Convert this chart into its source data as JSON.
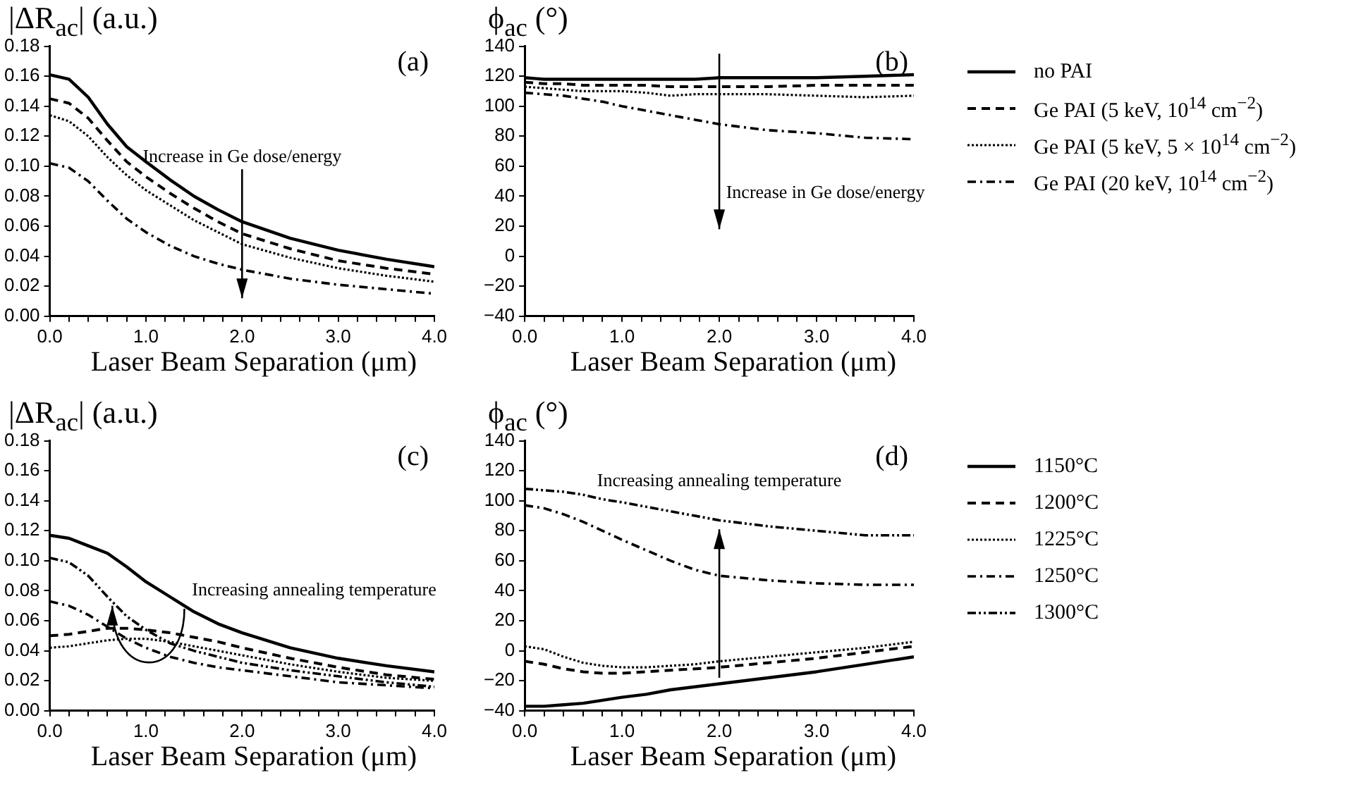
{
  "chart_data": [
    {
      "type": "line",
      "title": "(a)",
      "xlabel": "Laser Beam Separation (μm)",
      "ylabel": "|ΔR$_{ac}$| (a.u.)",
      "x": [
        0,
        0.2,
        0.4,
        0.6,
        0.8,
        1.0,
        1.25,
        1.5,
        1.75,
        2.0,
        2.5,
        3.0,
        3.5,
        4.0
      ],
      "xlim": [
        0,
        4
      ],
      "xticks": [
        {
          "value": 0,
          "label": "0.0"
        },
        {
          "value": 0.2,
          "label": null
        },
        {
          "value": 0.4,
          "label": null
        },
        {
          "value": 0.6,
          "label": null
        },
        {
          "value": 0.8,
          "label": null
        },
        {
          "value": 1,
          "label": "1.0"
        },
        {
          "value": 1.2,
          "label": null
        },
        {
          "value": 1.4,
          "label": null
        },
        {
          "value": 1.6,
          "label": null
        },
        {
          "value": 1.8,
          "label": null
        },
        {
          "value": 2,
          "label": "2.0"
        },
        {
          "value": 2.2,
          "label": null
        },
        {
          "value": 2.4,
          "label": null
        },
        {
          "value": 2.6,
          "label": null
        },
        {
          "value": 2.8,
          "label": null
        },
        {
          "value": 3,
          "label": "3.0"
        },
        {
          "value": 3.2,
          "label": null
        },
        {
          "value": 3.4,
          "label": null
        },
        {
          "value": 3.6,
          "label": null
        },
        {
          "value": 3.8,
          "label": null
        },
        {
          "value": 4,
          "label": "4.0"
        }
      ],
      "ylim": [
        0,
        0.18
      ],
      "yticks": [
        {
          "value": 0,
          "label": "0.00"
        },
        {
          "value": 0.02,
          "label": "0.02"
        },
        {
          "value": 0.04,
          "label": "0.04"
        },
        {
          "value": 0.06,
          "label": "0.06"
        },
        {
          "value": 0.08,
          "label": "0.08"
        },
        {
          "value": 0.1,
          "label": "0.10"
        },
        {
          "value": 0.12,
          "label": "0.12"
        },
        {
          "value": 0.14,
          "label": "0.14"
        },
        {
          "value": 0.16,
          "label": "0.16"
        },
        {
          "value": 0.18,
          "label": "0.18"
        }
      ],
      "grid": false,
      "legend": false,
      "marker": "none",
      "annotations": [
        "Increase in Ge dose/energy"
      ],
      "series": [
        {
          "color": "#000000",
          "line_style": "solid",
          "values": [
            0.161,
            0.158,
            0.146,
            0.128,
            0.113,
            0.103,
            0.091,
            0.08,
            0.071,
            0.063,
            0.052,
            0.044,
            0.038,
            0.033
          ]
        },
        {
          "color": "#000000",
          "line_style": "dashed",
          "values": [
            0.145,
            0.142,
            0.132,
            0.117,
            0.103,
            0.093,
            0.082,
            0.072,
            0.063,
            0.055,
            0.045,
            0.037,
            0.032,
            0.028
          ]
        },
        {
          "color": "#000000",
          "line_style": "dotted",
          "values": [
            0.134,
            0.13,
            0.12,
            0.106,
            0.094,
            0.084,
            0.074,
            0.064,
            0.056,
            0.048,
            0.039,
            0.032,
            0.027,
            0.023
          ]
        },
        {
          "color": "#000000",
          "line_style": "dashdot",
          "values": [
            0.102,
            0.099,
            0.09,
            0.077,
            0.065,
            0.056,
            0.047,
            0.04,
            0.035,
            0.031,
            0.025,
            0.021,
            0.018,
            0.015
          ]
        }
      ]
    },
    {
      "type": "line",
      "title": "(b)",
      "xlabel": "Laser Beam Separation (μm)",
      "ylabel": "ϕ$_{ac}$ (°)",
      "x": [
        0,
        0.2,
        0.4,
        0.6,
        0.8,
        1.0,
        1.25,
        1.5,
        1.75,
        2.0,
        2.5,
        3.0,
        3.5,
        4.0
      ],
      "xlim": [
        0,
        4
      ],
      "xticks": [
        {
          "value": 0,
          "label": "0.0"
        },
        {
          "value": 0.2,
          "label": null
        },
        {
          "value": 0.4,
          "label": null
        },
        {
          "value": 0.6,
          "label": null
        },
        {
          "value": 0.8,
          "label": null
        },
        {
          "value": 1,
          "label": "1.0"
        },
        {
          "value": 1.2,
          "label": null
        },
        {
          "value": 1.4,
          "label": null
        },
        {
          "value": 1.6,
          "label": null
        },
        {
          "value": 1.8,
          "label": null
        },
        {
          "value": 2,
          "label": "2.0"
        },
        {
          "value": 2.2,
          "label": null
        },
        {
          "value": 2.4,
          "label": null
        },
        {
          "value": 2.6,
          "label": null
        },
        {
          "value": 2.8,
          "label": null
        },
        {
          "value": 3,
          "label": "3.0"
        },
        {
          "value": 3.2,
          "label": null
        },
        {
          "value": 3.4,
          "label": null
        },
        {
          "value": 3.6,
          "label": null
        },
        {
          "value": 3.8,
          "label": null
        },
        {
          "value": 4,
          "label": "4.0"
        }
      ],
      "ylim": [
        -40,
        140
      ],
      "yticks": [
        {
          "value": -40,
          "label": "−40"
        },
        {
          "value": -20,
          "label": "−20"
        },
        0,
        20,
        40,
        60,
        80,
        100,
        120,
        140
      ],
      "grid": false,
      "legend": "right",
      "marker": "none",
      "annotations": [
        "Increase in Ge dose/energy"
      ],
      "series": [
        {
          "name": "no PAI",
          "color": "#000000",
          "line_style": "solid",
          "values": [
            119,
            118,
            118,
            118,
            118,
            118,
            118,
            118,
            118,
            119,
            119,
            119,
            120,
            121
          ]
        },
        {
          "name": "Ge PAI (5 keV, 10$^{14}$ cm$^{−2}$)",
          "color": "#000000",
          "line_style": "dashed",
          "values": [
            116,
            115,
            115,
            114,
            114,
            114,
            114,
            113,
            113,
            113,
            113,
            114,
            114,
            114
          ]
        },
        {
          "name": "Ge PAI (5 keV, 5 × 10$^{14}$ cm$^{−2}$)",
          "color": "#000000",
          "line_style": "dotted",
          "values": [
            113,
            112,
            111,
            110,
            110,
            110,
            109,
            107,
            108,
            108,
            108,
            107,
            106,
            107
          ]
        },
        {
          "name": "Ge PAI (20 keV, 10$^{14}$ cm$^{−2}$)",
          "color": "#000000",
          "line_style": "dashdot",
          "values": [
            109,
            108,
            107,
            105,
            103,
            100,
            97,
            94,
            91,
            88,
            84,
            82,
            79,
            78
          ]
        }
      ]
    },
    {
      "type": "line",
      "title": "(c)",
      "xlabel": "Laser Beam Separation (μm)",
      "ylabel": "|ΔR$_{ac}$| (a.u.)",
      "x": [
        0,
        0.2,
        0.4,
        0.6,
        0.8,
        1.0,
        1.25,
        1.5,
        1.75,
        2.0,
        2.5,
        3.0,
        3.5,
        4.0
      ],
      "xlim": [
        0,
        4
      ],
      "xticks": [
        {
          "value": 0,
          "label": "0.0"
        },
        {
          "value": 0.2,
          "label": null
        },
        {
          "value": 0.4,
          "label": null
        },
        {
          "value": 0.6,
          "label": null
        },
        {
          "value": 0.8,
          "label": null
        },
        {
          "value": 1,
          "label": "1.0"
        },
        {
          "value": 1.2,
          "label": null
        },
        {
          "value": 1.4,
          "label": null
        },
        {
          "value": 1.6,
          "label": null
        },
        {
          "value": 1.8,
          "label": null
        },
        {
          "value": 2,
          "label": "2.0"
        },
        {
          "value": 2.2,
          "label": null
        },
        {
          "value": 2.4,
          "label": null
        },
        {
          "value": 2.6,
          "label": null
        },
        {
          "value": 2.8,
          "label": null
        },
        {
          "value": 3,
          "label": "3.0"
        },
        {
          "value": 3.2,
          "label": null
        },
        {
          "value": 3.4,
          "label": null
        },
        {
          "value": 3.6,
          "label": null
        },
        {
          "value": 3.8,
          "label": null
        },
        {
          "value": 4,
          "label": "4.0"
        }
      ],
      "ylim": [
        0,
        0.18
      ],
      "yticks": [
        {
          "value": 0,
          "label": "0.00"
        },
        {
          "value": 0.02,
          "label": "0.02"
        },
        {
          "value": 0.04,
          "label": "0.04"
        },
        {
          "value": 0.06,
          "label": "0.06"
        },
        {
          "value": 0.08,
          "label": "0.08"
        },
        {
          "value": 0.1,
          "label": "0.10"
        },
        {
          "value": 0.12,
          "label": "0.12"
        },
        {
          "value": 0.14,
          "label": "0.14"
        },
        {
          "value": 0.16,
          "label": "0.16"
        },
        {
          "value": 0.18,
          "label": "0.18"
        }
      ],
      "grid": false,
      "legend": false,
      "marker": "none",
      "annotations": [
        {
          "text": "Increasing annealing temperature",
          "x": 0.65,
          "y": 0.07
        }
      ],
      "series": [
        {
          "color": "#000000",
          "line_style": "solid",
          "values": [
            0.117,
            0.115,
            0.11,
            0.105,
            0.096,
            0.086,
            0.076,
            0.066,
            0.058,
            0.052,
            0.042,
            0.035,
            0.03,
            0.026
          ]
        },
        {
          "color": "#000000",
          "line_style": "dashed",
          "values": [
            0.05,
            0.051,
            0.053,
            0.055,
            0.055,
            0.054,
            0.052,
            0.049,
            0.046,
            0.042,
            0.035,
            0.029,
            0.024,
            0.021
          ]
        },
        {
          "color": "#000000",
          "line_style": "dotted",
          "values": [
            0.042,
            0.043,
            0.045,
            0.047,
            0.048,
            0.048,
            0.046,
            0.043,
            0.04,
            0.037,
            0.031,
            0.026,
            0.022,
            0.02
          ]
        },
        {
          "color": "#000000",
          "line_style": "dashdot",
          "values": [
            0.073,
            0.07,
            0.064,
            0.056,
            0.048,
            0.042,
            0.036,
            0.032,
            0.029,
            0.027,
            0.023,
            0.019,
            0.017,
            0.015
          ]
        },
        {
          "color": "#000000",
          "line_style": "dashdotdot",
          "values": [
            0.102,
            0.099,
            0.09,
            0.076,
            0.063,
            0.054,
            0.045,
            0.04,
            0.036,
            0.032,
            0.027,
            0.023,
            0.019,
            0.016
          ]
        }
      ]
    },
    {
      "type": "line",
      "title": "(d)",
      "xlabel": "Laser Beam Separation (μm)",
      "ylabel": "ϕ$_{ac}$ (°)",
      "x": [
        0,
        0.2,
        0.4,
        0.6,
        0.8,
        1.0,
        1.25,
        1.5,
        1.75,
        2.0,
        2.5,
        3.0,
        3.5,
        4.0
      ],
      "xlim": [
        0,
        4
      ],
      "xticks": [
        {
          "value": 0,
          "label": "0.0"
        },
        {
          "value": 0.2,
          "label": null
        },
        {
          "value": 0.4,
          "label": null
        },
        {
          "value": 0.6,
          "label": null
        },
        {
          "value": 0.8,
          "label": null
        },
        {
          "value": 1,
          "label": "1.0"
        },
        {
          "value": 1.2,
          "label": null
        },
        {
          "value": 1.4,
          "label": null
        },
        {
          "value": 1.6,
          "label": null
        },
        {
          "value": 1.8,
          "label": null
        },
        {
          "value": 2,
          "label": "2.0"
        },
        {
          "value": 2.2,
          "label": null
        },
        {
          "value": 2.4,
          "label": null
        },
        {
          "value": 2.6,
          "label": null
        },
        {
          "value": 2.8,
          "label": null
        },
        {
          "value": 3,
          "label": "3.0"
        },
        {
          "value": 3.2,
          "label": null
        },
        {
          "value": 3.4,
          "label": null
        },
        {
          "value": 3.6,
          "label": null
        },
        {
          "value": 3.8,
          "label": null
        },
        {
          "value": 4,
          "label": "4.0"
        }
      ],
      "ylim": [
        -40,
        140
      ],
      "yticks": [
        {
          "value": -40,
          "label": "−40"
        },
        {
          "value": -20,
          "label": "−20"
        },
        0,
        20,
        40,
        60,
        80,
        100,
        120,
        140
      ],
      "grid": false,
      "legend": "right",
      "marker": "none",
      "annotations": [
        "Increasing annealing temperature"
      ],
      "series": [
        {
          "name": "1150°C",
          "color": "#000000",
          "line_style": "solid",
          "values": [
            -37,
            -37,
            -36,
            -35,
            -33,
            -31,
            -29,
            -26,
            -24,
            -22,
            -18,
            -14,
            -9,
            -4
          ]
        },
        {
          "name": "1200°C",
          "color": "#000000",
          "line_style": "dashed",
          "values": [
            -7,
            -9,
            -12,
            -14,
            -15,
            -15,
            -14,
            -13,
            -12,
            -11,
            -8,
            -5,
            -1,
            3
          ]
        },
        {
          "name": "1225°C",
          "color": "#000000",
          "line_style": "dotted",
          "values": [
            3,
            1,
            -4,
            -8,
            -10,
            -11,
            -11,
            -10,
            -9,
            -7,
            -4,
            -1,
            2,
            6
          ]
        },
        {
          "name": "1250°C",
          "color": "#000000",
          "line_style": "dashdot",
          "values": [
            97,
            95,
            91,
            86,
            80,
            74,
            67,
            60,
            54,
            50,
            47,
            45,
            44,
            44
          ]
        },
        {
          "name": "1300°C",
          "color": "#000000",
          "line_style": "dashdotdot",
          "values": [
            108,
            107,
            106,
            104,
            101,
            99,
            96,
            93,
            90,
            87,
            83,
            80,
            77,
            77
          ]
        }
      ]
    }
  ]
}
